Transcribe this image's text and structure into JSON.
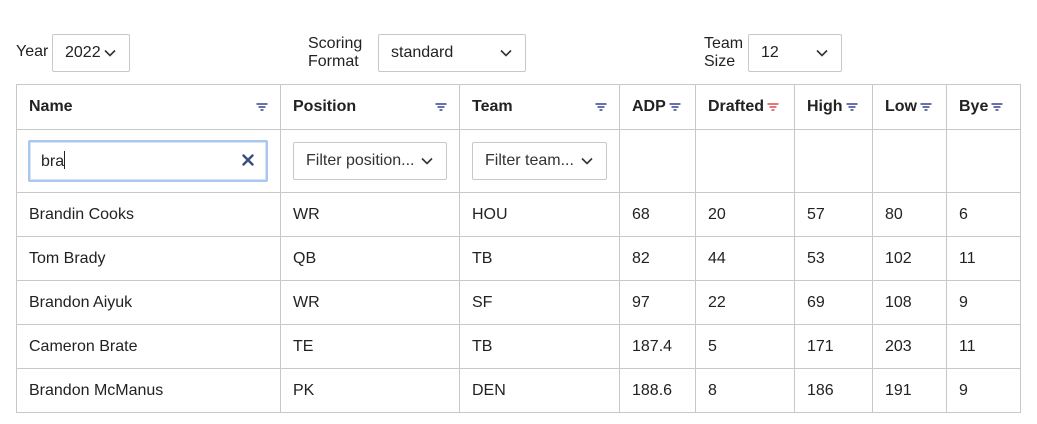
{
  "controls": {
    "year": {
      "label": "Year",
      "value": "2022"
    },
    "scoring": {
      "label_line1": "Scoring",
      "label_line2": "Format",
      "value": "standard"
    },
    "team_size": {
      "label_line1": "Team",
      "label_line2": "Size",
      "value": "12"
    }
  },
  "table": {
    "columns": [
      {
        "key": "name",
        "label": "Name",
        "filter_color": "#1a237e"
      },
      {
        "key": "position",
        "label": "Position",
        "filter_color": "#1a237e"
      },
      {
        "key": "team",
        "label": "Team",
        "filter_color": "#1a237e"
      },
      {
        "key": "adp",
        "label": "ADP",
        "filter_color": "#1a237e"
      },
      {
        "key": "drafted",
        "label": "Drafted",
        "filter_color": "#d32f2f"
      },
      {
        "key": "high",
        "label": "High",
        "filter_color": "#1a237e"
      },
      {
        "key": "low",
        "label": "Low",
        "filter_color": "#1a237e"
      },
      {
        "key": "bye",
        "label": "Bye",
        "filter_color": "#1a237e"
      }
    ],
    "filters": {
      "name_value": "bra",
      "position_placeholder": "Filter position...",
      "team_placeholder": "Filter team..."
    },
    "rows": [
      {
        "name": "Brandin Cooks",
        "position": "WR",
        "team": "HOU",
        "adp": "68",
        "drafted": "20",
        "high": "57",
        "low": "80",
        "bye": "6"
      },
      {
        "name": "Tom Brady",
        "position": "QB",
        "team": "TB",
        "adp": "82",
        "drafted": "44",
        "high": "53",
        "low": "102",
        "bye": "11"
      },
      {
        "name": "Brandon Aiyuk",
        "position": "WR",
        "team": "SF",
        "adp": "97",
        "drafted": "22",
        "high": "69",
        "low": "108",
        "bye": "9"
      },
      {
        "name": "Cameron Brate",
        "position": "TE",
        "team": "TB",
        "adp": "187.4",
        "drafted": "5",
        "high": "171",
        "low": "203",
        "bye": "11"
      },
      {
        "name": "Brandon McManus",
        "position": "PK",
        "team": "DEN",
        "adp": "188.6",
        "drafted": "8",
        "high": "186",
        "low": "191",
        "bye": "9"
      }
    ]
  }
}
